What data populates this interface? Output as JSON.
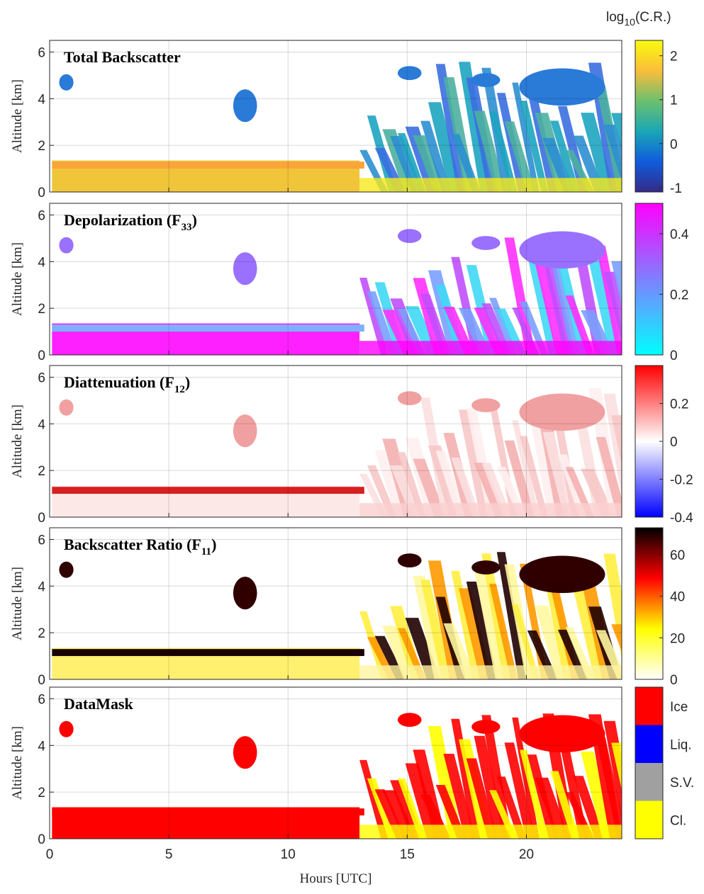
{
  "colorbar_label": [
    "log",
    "10",
    "(C.R.)"
  ],
  "chart_data": [
    {
      "type": "heatmap",
      "title": [
        "Total Backscatter"
      ],
      "ylabel": "Altitude [km]",
      "xlim": [
        0,
        24
      ],
      "xticks": [
        0,
        5,
        10,
        15,
        20
      ],
      "ylim": [
        0,
        6.5
      ],
      "yticks": [
        0,
        2,
        4,
        6
      ],
      "grid": true,
      "colorbar": {
        "lim": [
          -1.1,
          2.35
        ],
        "ticks": [
          -1,
          0,
          1,
          2
        ],
        "colors": [
          "#352a87",
          "#0f5cdd",
          "#1aa7b5",
          "#6cc06e",
          "#fbbd3b",
          "#f9fb0e"
        ]
      }
    },
    {
      "type": "heatmap",
      "title": [
        "Depolarization (F",
        "33",
        ")"
      ],
      "ylabel": "Altitude [km]",
      "xlim": [
        0,
        24
      ],
      "xticks": [
        0,
        5,
        10,
        15,
        20
      ],
      "ylim": [
        0,
        6.5
      ],
      "yticks": [
        0,
        2,
        4,
        6
      ],
      "grid": true,
      "colorbar": {
        "lim": [
          0,
          0.5
        ],
        "ticks": [
          0,
          0.2,
          0.4
        ],
        "colors": [
          "#00ffff",
          "#ff00ff"
        ]
      }
    },
    {
      "type": "heatmap",
      "title": [
        "Diattenuation (F",
        "12",
        ")"
      ],
      "ylabel": "Altitude [km]",
      "xlim": [
        0,
        24
      ],
      "xticks": [
        0,
        5,
        10,
        15,
        20
      ],
      "ylim": [
        0,
        6.5
      ],
      "yticks": [
        0,
        2,
        4,
        6
      ],
      "grid": true,
      "colorbar": {
        "lim": [
          -0.4,
          0.4
        ],
        "ticks": [
          -0.4,
          -0.2,
          0,
          0.2
        ],
        "colors": [
          "#0000ff",
          "#ffffff",
          "#ff0000"
        ]
      }
    },
    {
      "type": "heatmap",
      "title": [
        "Backscatter Ratio (F",
        "11",
        ")"
      ],
      "ylabel": "Altitude [km]",
      "xlim": [
        0,
        24
      ],
      "xticks": [
        0,
        5,
        10,
        15,
        20
      ],
      "ylim": [
        0,
        6.5
      ],
      "yticks": [
        0,
        2,
        4,
        6
      ],
      "grid": true,
      "colorbar": {
        "lim": [
          0,
          73
        ],
        "ticks": [
          0,
          20,
          40,
          60
        ],
        "colors": [
          "#ffffff",
          "#ffff00",
          "#ff0000",
          "#000000"
        ]
      }
    },
    {
      "type": "heatmap",
      "title": [
        "DataMask"
      ],
      "ylabel": "Altitude [km]",
      "xlabel": "Hours [UTC]",
      "xlim": [
        0,
        24
      ],
      "xticks": [
        0,
        5,
        10,
        15,
        20
      ],
      "ylim": [
        0,
        6.5
      ],
      "yticks": [
        0,
        2,
        4,
        6
      ],
      "grid": true,
      "colorbar": {
        "categories": [
          "Ice",
          "Liq.",
          "S.V.",
          "Cl."
        ],
        "colors": [
          "#ff0000",
          "#0000ff",
          "#a0a0a0",
          "#ffff00"
        ]
      }
    }
  ]
}
